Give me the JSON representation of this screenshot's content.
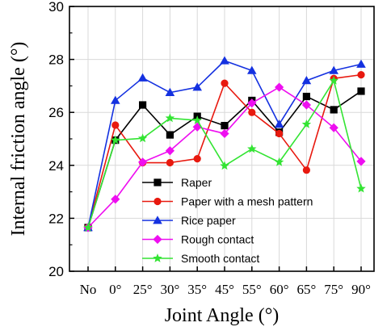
{
  "chart_data": {
    "type": "line",
    "title": "",
    "xlabel": "Joint Angle (°)",
    "ylabel": "Internal friction angle (°)",
    "categories": [
      "No",
      "0°",
      "25°",
      "30°",
      "35°",
      "45°",
      "55°",
      "60°",
      "65°",
      "75°",
      "90°"
    ],
    "ylim": [
      20,
      30
    ],
    "yticks": [
      20,
      22,
      24,
      26,
      28,
      30
    ],
    "grid": true,
    "legend_position": "bottom-center",
    "series": [
      {
        "name": "Raper",
        "color": "#000000",
        "marker": "square",
        "values": [
          21.65,
          24.95,
          26.28,
          25.15,
          25.85,
          25.5,
          26.45,
          25.25,
          26.6,
          26.1,
          26.8
        ]
      },
      {
        "name": "Paper with a mesh pattern",
        "color": "#e8190f",
        "marker": "circle",
        "values": [
          21.65,
          25.52,
          24.1,
          24.1,
          24.25,
          27.1,
          26.0,
          25.2,
          23.82,
          27.28,
          27.42
        ]
      },
      {
        "name": "Rice paper",
        "color": "#1431e0",
        "marker": "triangle-up",
        "values": [
          21.65,
          26.45,
          27.3,
          26.75,
          26.95,
          27.95,
          27.58,
          25.55,
          27.2,
          27.58,
          27.82
        ]
      },
      {
        "name": "Rough contact",
        "color": "#ee0ef0",
        "marker": "diamond",
        "values": [
          21.65,
          22.72,
          24.12,
          24.55,
          25.45,
          25.2,
          26.35,
          26.95,
          26.28,
          25.42,
          24.15
        ]
      },
      {
        "name": "Smooth contact",
        "color": "#33e433",
        "marker": "star",
        "values": [
          21.65,
          24.95,
          25.02,
          25.78,
          25.7,
          23.98,
          24.62,
          24.12,
          25.55,
          27.2,
          23.12
        ]
      }
    ]
  }
}
